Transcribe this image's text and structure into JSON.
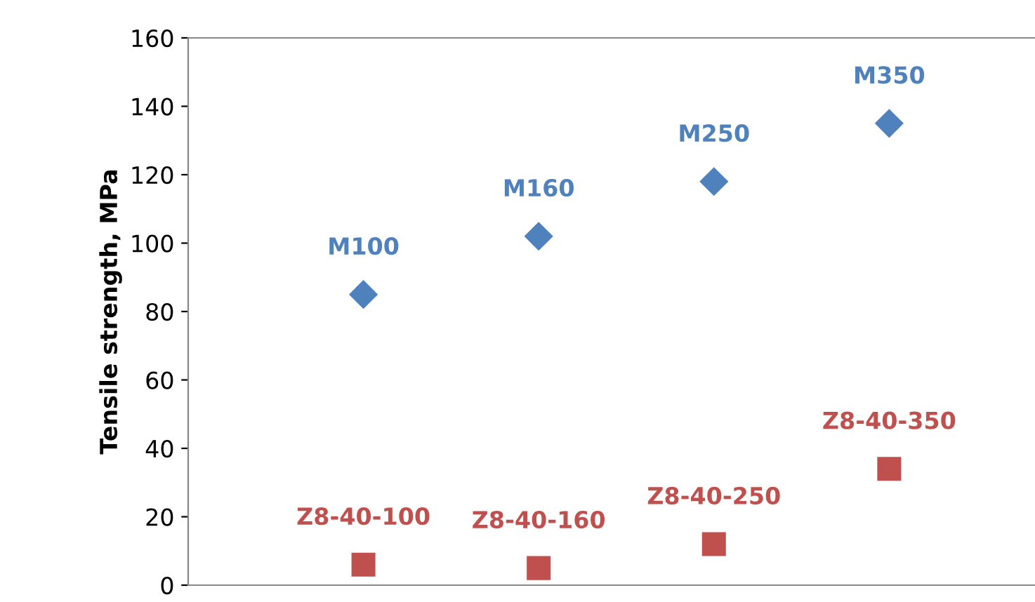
{
  "chart_data": {
    "type": "scatter",
    "ylabel": "Tensile strength, MPa",
    "categories": [
      null,
      null,
      null,
      null
    ],
    "series": [
      {
        "color": "#4f81bd",
        "marker": "diamond",
        "values": [
          85,
          102,
          118,
          135
        ],
        "value_labels": [
          "M100",
          "M160",
          "M250",
          "M350"
        ]
      },
      {
        "color": "#c0504d",
        "marker": "square",
        "values": [
          6,
          5,
          12,
          34
        ],
        "value_labels": [
          "Z8-40-100",
          "Z8-40-160",
          "Z8-40-250",
          "Z8-40-350"
        ]
      }
    ],
    "ylim": [
      0,
      160
    ],
    "yticks": [
      0,
      20,
      40,
      60,
      80,
      100,
      120,
      140,
      160
    ],
    "grid": false,
    "legend": false
  }
}
